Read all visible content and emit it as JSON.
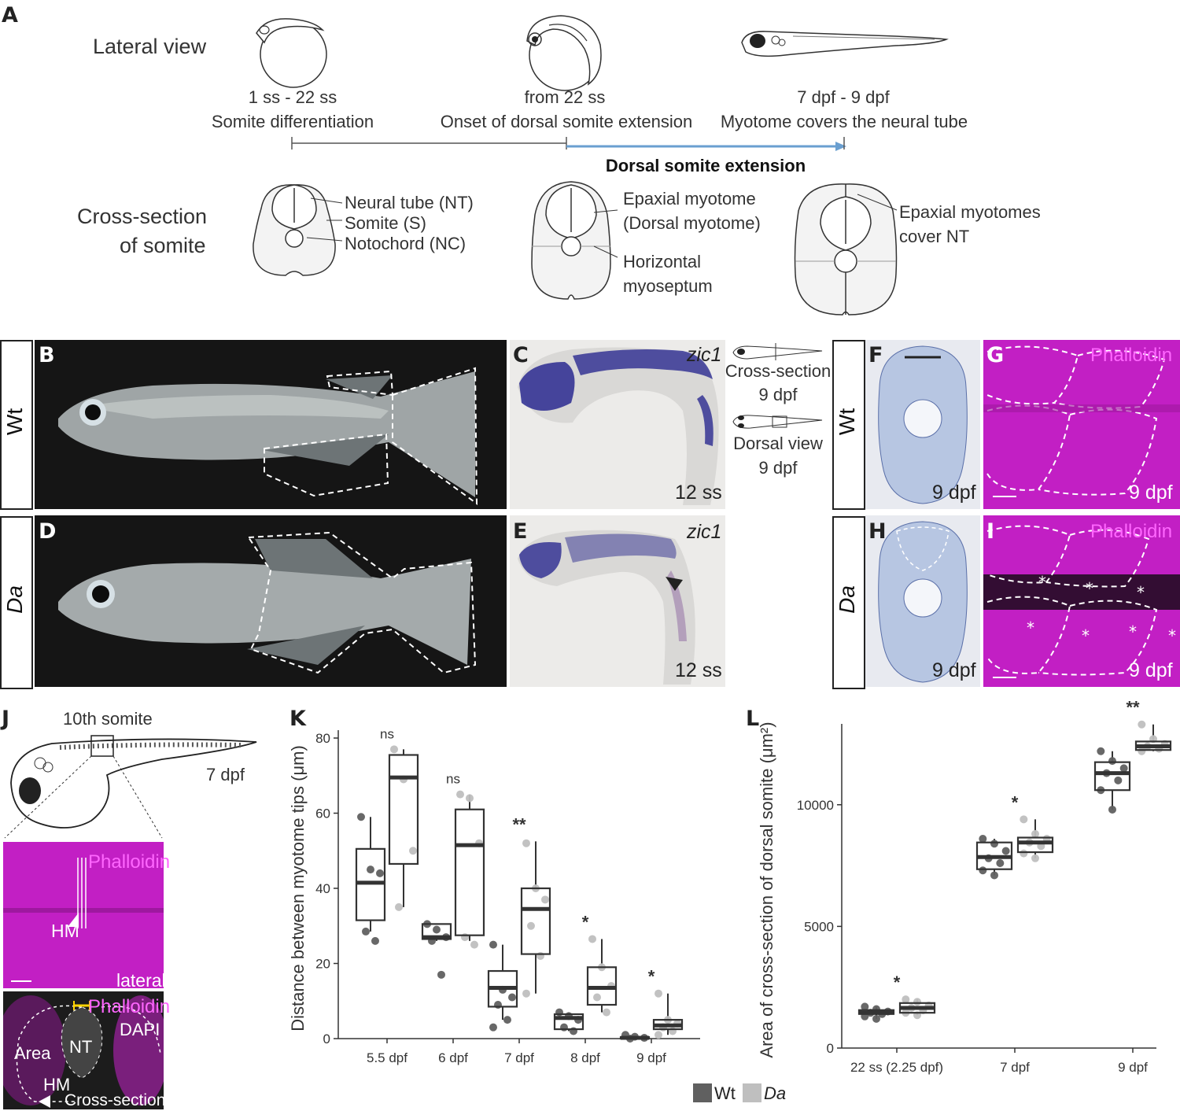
{
  "panel_a": {
    "label": "A",
    "lateral_view": "Lateral view",
    "cross_section_line1": "Cross-section",
    "cross_section_line2": "of somite",
    "stage1_line1": "1 ss - 22 ss",
    "stage1_line2": "Somite differentiation",
    "stage2_line1": "from 22 ss",
    "stage2_line2": "Onset of dorsal somite extension",
    "stage3_line1": "7 dpf - 9 dpf",
    "stage3_line2": "Myotome covers the neural tube",
    "timeline_label": "Dorsal somite extension",
    "xs1_nt": "Neural tube (NT)",
    "xs1_s": "Somite (S)",
    "xs1_nc": "Notochord (NC)",
    "xs2_epaxial1": "Epaxial myotome",
    "xs2_epaxial2": "(Dorsal myotome)",
    "xs2_hm1": "Horizontal",
    "xs2_hm2": "myoseptum",
    "xs3_line1": "Epaxial myotomes",
    "xs3_line2": "cover NT",
    "accent_color": "#6a9fd0"
  },
  "row_labels": {
    "wt": "Wt",
    "da": "Da"
  },
  "panel_b": {
    "label": "B"
  },
  "panel_c": {
    "label": "C",
    "gene": "zic1",
    "stage": "12 ss"
  },
  "panel_d": {
    "label": "D"
  },
  "panel_e": {
    "label": "E",
    "gene": "zic1",
    "stage": "12 ss"
  },
  "inset": {
    "cross_line1": "Cross-section",
    "cross_line2": "9 dpf",
    "dorsal_line1": "Dorsal view",
    "dorsal_line2": "9 dpf"
  },
  "panel_f": {
    "label": "F",
    "stage": "9 dpf"
  },
  "panel_g": {
    "label": "G",
    "stain": "Phalloidin",
    "stage": "9 dpf"
  },
  "panel_h": {
    "label": "H",
    "stage": "9 dpf"
  },
  "panel_i": {
    "label": "I",
    "stain": "Phalloidin",
    "stage": "9 dpf"
  },
  "panel_j": {
    "label": "J",
    "somite": "10th somite",
    "stage": "7 dpf",
    "stain": "Phalloidin",
    "hm": "HM",
    "lateral": "lateral",
    "stain2": "Phalloidin",
    "dapi": "DAPI",
    "area": "Area",
    "nt": "NT",
    "hm2": "HM",
    "cross": "Cross-section"
  },
  "colors": {
    "magenta": "#c21fc4",
    "dark_bg": "#141414",
    "stain_blue": "#2a2a90",
    "wt_dot": "#606060",
    "da_dot": "#bfbfbf"
  },
  "legend": {
    "wt": "Wt",
    "da": "Da"
  },
  "chart_data": [
    {
      "panel": "K",
      "type": "box",
      "ylabel": "Distance between myotome tips (μm)",
      "xlabel": "",
      "ylim": [
        0,
        80
      ],
      "yticks": [
        0,
        20,
        40,
        60,
        80
      ],
      "categories": [
        "5.5 dpf",
        "6 dpf",
        "7 dpf",
        "8 dpf",
        "9 dpf"
      ],
      "significance": [
        "ns",
        "ns",
        "**",
        "*",
        "*"
      ],
      "series": [
        {
          "name": "Wt",
          "boxes": [
            {
              "q1": 31.5,
              "median": 41.5,
              "q3": 50.5,
              "min": 28.5,
              "max": 59
            },
            {
              "q1": 26.5,
              "median": 27,
              "q3": 30.5,
              "min": 26,
              "max": 30.5
            },
            {
              "q1": 8.5,
              "median": 13.5,
              "q3": 18,
              "min": 5,
              "max": 25
            },
            {
              "q1": 2.5,
              "median": 5.5,
              "q3": 6.5,
              "min": 2,
              "max": 7
            },
            {
              "q1": 0,
              "median": 0.2,
              "q3": 0.4,
              "min": 0,
              "max": 0.5
            }
          ],
          "points": [
            [
              59,
              45,
              44,
              28.5,
              26
            ],
            [
              30.5,
              29,
              27,
              26,
              17
            ],
            [
              25,
              13,
              11,
              9,
              5,
              3
            ],
            [
              7,
              6,
              5,
              3,
              2
            ],
            [
              1,
              0.5,
              0.2,
              0
            ]
          ]
        },
        {
          "name": "Da",
          "boxes": [
            {
              "q1": 46.5,
              "median": 69.5,
              "q3": 75.5,
              "min": 35,
              "max": 77
            },
            {
              "q1": 27.5,
              "median": 51.5,
              "q3": 61,
              "min": 26,
              "max": 65
            },
            {
              "q1": 22.5,
              "median": 34.5,
              "q3": 40,
              "min": 12,
              "max": 52.5
            },
            {
              "q1": 9,
              "median": 13.5,
              "q3": 19,
              "min": 7,
              "max": 26.5
            },
            {
              "q1": 2.5,
              "median": 3.5,
              "q3": 5,
              "min": 1,
              "max": 12
            }
          ],
          "points": [
            [
              77,
              69,
              50,
              35
            ],
            [
              65,
              64,
              52,
              27,
              25
            ],
            [
              52,
              40,
              37,
              30,
              22,
              12
            ],
            [
              26.5,
              19,
              14,
              11,
              7
            ],
            [
              12,
              5,
              4,
              3,
              2,
              1
            ]
          ]
        }
      ]
    },
    {
      "panel": "L",
      "type": "box",
      "ylabel": "Area of cross-section of dorsal somite (μm²)",
      "xlabel": "",
      "ylim": [
        0,
        13000
      ],
      "yticks": [
        0,
        5000,
        10000
      ],
      "categories": [
        "22 ss (2.25 dpf)",
        "7 dpf",
        "9 dpf"
      ],
      "significance": [
        "*",
        "*",
        "**"
      ],
      "series": [
        {
          "name": "Wt",
          "boxes": [
            {
              "q1": 1400,
              "median": 1450,
              "q3": 1560,
              "min": 1200,
              "max": 1700
            },
            {
              "q1": 7350,
              "median": 7850,
              "q3": 8450,
              "min": 7100,
              "max": 8600
            },
            {
              "q1": 10600,
              "median": 11300,
              "q3": 11750,
              "min": 9800,
              "max": 12200
            }
          ],
          "points": [
            [
              1700,
              1600,
              1500,
              1450,
              1400,
              1300,
              1200
            ],
            [
              8600,
              8400,
              8100,
              7800,
              7600,
              7300,
              7100
            ],
            [
              12200,
              11800,
              11500,
              11300,
              11000,
              10600,
              9800
            ]
          ]
        },
        {
          "name": "Da",
          "boxes": [
            {
              "q1": 1450,
              "median": 1650,
              "q3": 1850,
              "min": 1350,
              "max": 2000
            },
            {
              "q1": 8050,
              "median": 8450,
              "q3": 8650,
              "min": 7800,
              "max": 9400
            },
            {
              "q1": 12250,
              "median": 12400,
              "q3": 12600,
              "min": 12200,
              "max": 13300
            }
          ],
          "points": [
            [
              2000,
              1900,
              1750,
              1650,
              1550,
              1450,
              1350
            ],
            [
              9400,
              8800,
              8600,
              8450,
              8300,
              8000,
              7800
            ],
            [
              13300,
              12700,
              12500,
              12400,
              12300,
              12200
            ]
          ]
        }
      ]
    }
  ]
}
